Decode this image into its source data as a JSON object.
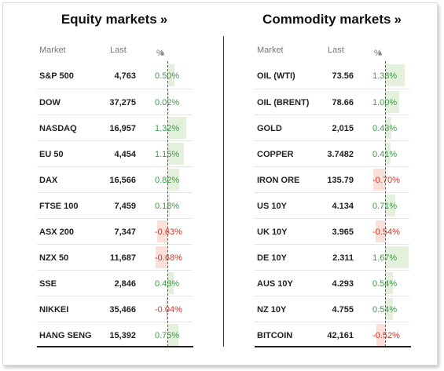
{
  "colors": {
    "positive_text": "#3e9a46",
    "negative_text": "#d0352b",
    "positive_bar": "#e3f1dc",
    "negative_bar": "#fbe0da"
  },
  "equity": {
    "title": "Equity markets",
    "title_suffix": "»",
    "headers": {
      "market": "Market",
      "last": "Last",
      "pct": "%",
      "sort_icon": "▲"
    },
    "rows": [
      {
        "market": "S&P 500",
        "last": "4,763",
        "pct": "0.50%",
        "value": 0.5
      },
      {
        "market": "DOW",
        "last": "37,275",
        "pct": "0.02%",
        "value": 0.02
      },
      {
        "market": "NASDAQ",
        "last": "16,957",
        "pct": "1.32%",
        "value": 1.32
      },
      {
        "market": "EU 50",
        "last": "4,454",
        "pct": "1.15%",
        "value": 1.15
      },
      {
        "market": "DAX",
        "last": "16,566",
        "pct": "0.82%",
        "value": 0.82
      },
      {
        "market": "FTSE 100",
        "last": "7,459",
        "pct": "0.18%",
        "value": 0.18
      },
      {
        "market": "ASX 200",
        "last": "7,347",
        "pct": "-0.63%",
        "value": -0.63
      },
      {
        "market": "NZX 50",
        "last": "11,687",
        "pct": "-0.68%",
        "value": -0.68
      },
      {
        "market": "SSE",
        "last": "2,846",
        "pct": "0.43%",
        "value": 0.43
      },
      {
        "market": "NIKKEI",
        "last": "35,466",
        "pct": "-0.04%",
        "value": -0.04
      },
      {
        "market": "HANG SENG",
        "last": "15,392",
        "pct": "0.75%",
        "value": 0.75
      }
    ]
  },
  "commodity": {
    "title": "Commodity markets",
    "title_suffix": "»",
    "headers": {
      "market": "Market",
      "last": "Last",
      "pct": "%",
      "sort_icon": "▲"
    },
    "rows": [
      {
        "market": "OIL (WTI)",
        "last": "73.56",
        "pct": "1.38%",
        "value": 1.38
      },
      {
        "market": "OIL (BRENT)",
        "last": "78.66",
        "pct": "1.00%",
        "value": 1.0
      },
      {
        "market": "GOLD",
        "last": "2,015",
        "pct": "0.43%",
        "value": 0.43
      },
      {
        "market": "COPPER",
        "last": "3.7482",
        "pct": "0.41%",
        "value": 0.41
      },
      {
        "market": "IRON ORE",
        "last": "135.79",
        "pct": "-0.70%",
        "value": -0.7
      },
      {
        "market": "US 10Y",
        "last": "4.134",
        "pct": "0.71%",
        "value": 0.71
      },
      {
        "market": "UK 10Y",
        "last": "3.965",
        "pct": "-0.54%",
        "value": -0.54
      },
      {
        "market": "DE 10Y",
        "last": "2.311",
        "pct": "1.67%",
        "value": 1.67
      },
      {
        "market": "AUS 10Y",
        "last": "4.293",
        "pct": "0.54%",
        "value": 0.54
      },
      {
        "market": "NZ 10Y",
        "last": "4.755",
        "pct": "0.54%",
        "value": 0.54
      },
      {
        "market": "BITCOIN",
        "last": "42,161",
        "pct": "-0.52%",
        "value": -0.52
      }
    ]
  }
}
